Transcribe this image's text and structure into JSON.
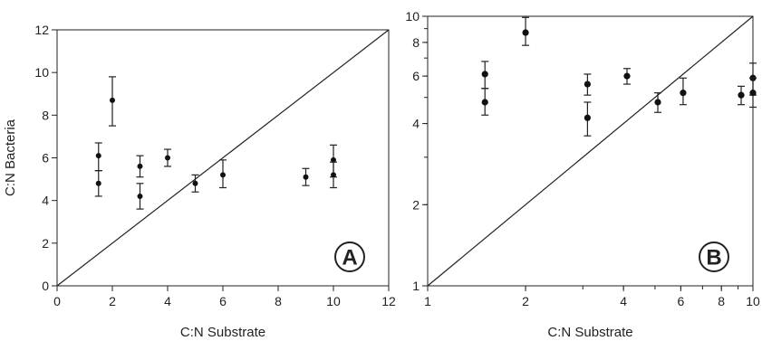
{
  "chart_data": [
    {
      "type": "scatter",
      "panel_label": "A",
      "scale": "linear",
      "xlabel": "C:N Substrate",
      "ylabel": "C:N Bacteria",
      "xlim": [
        0,
        12
      ],
      "ylim": [
        0,
        12
      ],
      "xticks": [
        "0",
        "2",
        "4",
        "6",
        "8",
        "10",
        "12"
      ],
      "yticks": [
        "0",
        "2",
        "4",
        "6",
        "8",
        "10",
        "12"
      ],
      "one_to_one_line": true,
      "points": [
        {
          "x": 1.5,
          "y": 6.1,
          "lo": 5.4,
          "hi": 6.7
        },
        {
          "x": 1.5,
          "y": 4.8,
          "lo": 4.2,
          "hi": 5.4
        },
        {
          "x": 2,
          "y": 8.7,
          "lo": 7.5,
          "hi": 9.8
        },
        {
          "x": 3,
          "y": 5.6,
          "lo": 5.1,
          "hi": 6.1
        },
        {
          "x": 3,
          "y": 4.2,
          "lo": 3.6,
          "hi": 4.8
        },
        {
          "x": 4,
          "y": 6.0,
          "lo": 5.6,
          "hi": 6.4
        },
        {
          "x": 5,
          "y": 4.8,
          "lo": 4.4,
          "hi": 5.2
        },
        {
          "x": 6,
          "y": 5.2,
          "lo": 4.6,
          "hi": 5.9
        },
        {
          "x": 9,
          "y": 5.1,
          "lo": 4.7,
          "hi": 5.5
        },
        {
          "x": 10,
          "y": 5.9,
          "lo": 5.1,
          "hi": 6.6
        },
        {
          "x": 10,
          "y": 5.2,
          "lo": 4.6,
          "hi": 5.8
        }
      ]
    },
    {
      "type": "scatter",
      "panel_label": "B",
      "scale": "log",
      "xlabel": "C:N Substrate",
      "ylabel": "",
      "xlim": [
        1,
        10
      ],
      "ylim": [
        1,
        10
      ],
      "xticks": [
        "1",
        "2",
        "4",
        "6",
        "8",
        "10"
      ],
      "yticks": [
        "1",
        "2",
        "4",
        "6",
        "8",
        "10"
      ],
      "one_to_one_line": true,
      "points": [
        {
          "x": 1.5,
          "y": 6.1,
          "lo": 5.4,
          "hi": 6.8
        },
        {
          "x": 1.5,
          "y": 4.8,
          "lo": 4.3,
          "hi": 5.4
        },
        {
          "x": 2,
          "y": 8.7,
          "lo": 7.8,
          "hi": 9.9
        },
        {
          "x": 3.1,
          "y": 5.6,
          "lo": 5.1,
          "hi": 6.1
        },
        {
          "x": 3.1,
          "y": 4.2,
          "lo": 3.6,
          "hi": 4.8
        },
        {
          "x": 4.1,
          "y": 6.0,
          "lo": 5.6,
          "hi": 6.4
        },
        {
          "x": 5.1,
          "y": 4.8,
          "lo": 4.4,
          "hi": 5.2
        },
        {
          "x": 6.1,
          "y": 5.2,
          "lo": 4.7,
          "hi": 5.9
        },
        {
          "x": 9.2,
          "y": 5.1,
          "lo": 4.7,
          "hi": 5.5
        },
        {
          "x": 10,
          "y": 5.9,
          "lo": 5.1,
          "hi": 6.7
        },
        {
          "x": 10,
          "y": 5.2,
          "lo": 4.6,
          "hi": 5.9
        }
      ]
    }
  ]
}
